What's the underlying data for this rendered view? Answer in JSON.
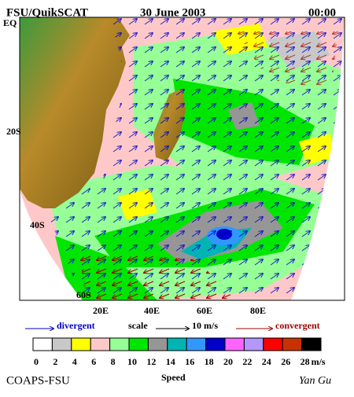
{
  "header": {
    "source": "FSU/QuikSCAT",
    "date": "30 June 2003",
    "time": "00:00"
  },
  "map": {
    "lat_labels": [
      "EQ",
      "20S",
      "40S",
      "60S"
    ],
    "lon_labels": [
      "20E",
      "40E",
      "60E",
      "80E"
    ]
  },
  "legend": {
    "divergent": "divergent",
    "scale": "scale",
    "scale_value": "10 m/s",
    "convergent": "convergent"
  },
  "colorbar": {
    "ticks": [
      0,
      2,
      4,
      6,
      8,
      10,
      12,
      14,
      16,
      18,
      20,
      22,
      24,
      26,
      28
    ],
    "unit": "m/s",
    "label": "Speed",
    "colors": [
      "#ffffff",
      "#c8c8c8",
      "#ffff00",
      "#ffc8c8",
      "#96ff96",
      "#00e600",
      "#969696",
      "#00b4b4",
      "#3296ff",
      "#0000c8",
      "#ff64ff",
      "#b496ff",
      "#ff0000",
      "#c83200",
      "#000000"
    ]
  },
  "footer": {
    "org": "COAPS-FSU",
    "author": "Yan Gu"
  }
}
